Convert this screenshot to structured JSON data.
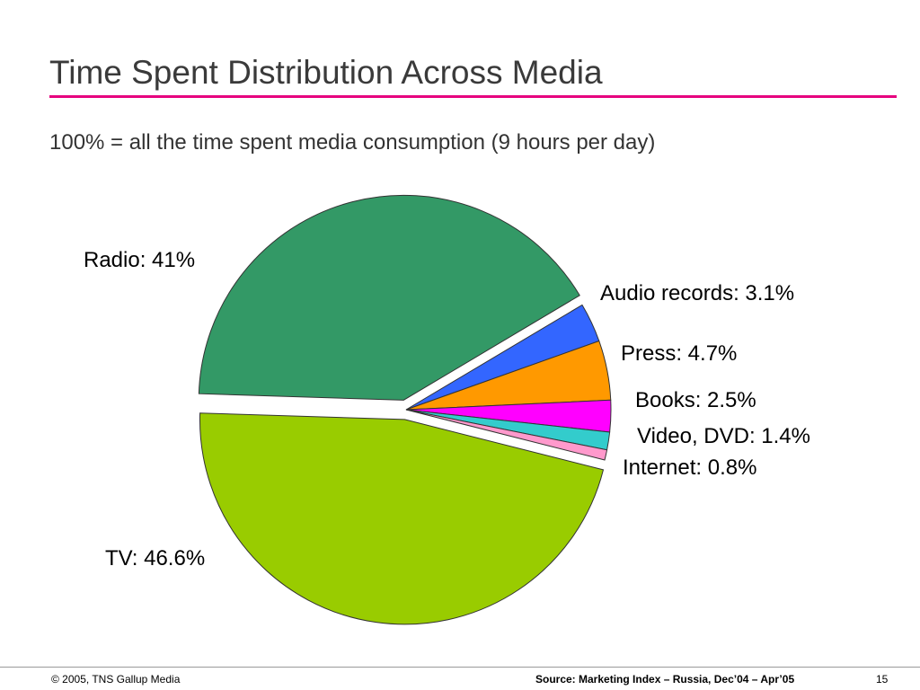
{
  "slide": {
    "title": "Time Spent Distribution Across Media",
    "subtitle": "100% = all the time spent media consumption (9 hours per day)"
  },
  "chart_data": {
    "type": "pie",
    "unit": "%",
    "slices": [
      {
        "name": "Radio",
        "value": 41,
        "label": "Radio: 41%",
        "color": "#339966"
      },
      {
        "name": "Audio records",
        "value": 3.1,
        "label": "Audio records: 3.1%",
        "color": "#3366ff"
      },
      {
        "name": "Press",
        "value": 4.7,
        "label": "Press: 4.7%",
        "color": "#ff9900"
      },
      {
        "name": "Books",
        "value": 2.5,
        "label": "Books: 2.5%",
        "color": "#ff00ff"
      },
      {
        "name": "Video, DVD",
        "value": 1.4,
        "label": "Video, DVD: 1.4%",
        "color": "#33cccc"
      },
      {
        "name": "Internet",
        "value": 0.8,
        "label": "Internet: 0.8%",
        "color": "#ff99cc"
      },
      {
        "name": "TV",
        "value": 46.6,
        "label": "TV: 46.6%",
        "color": "#99cc00"
      }
    ]
  },
  "footer": {
    "copyright": "© 2005, TNS Gallup Media",
    "source": "Source: Marketing Index – Russia, Dec’04 – Apr’05",
    "page_number": "15"
  }
}
